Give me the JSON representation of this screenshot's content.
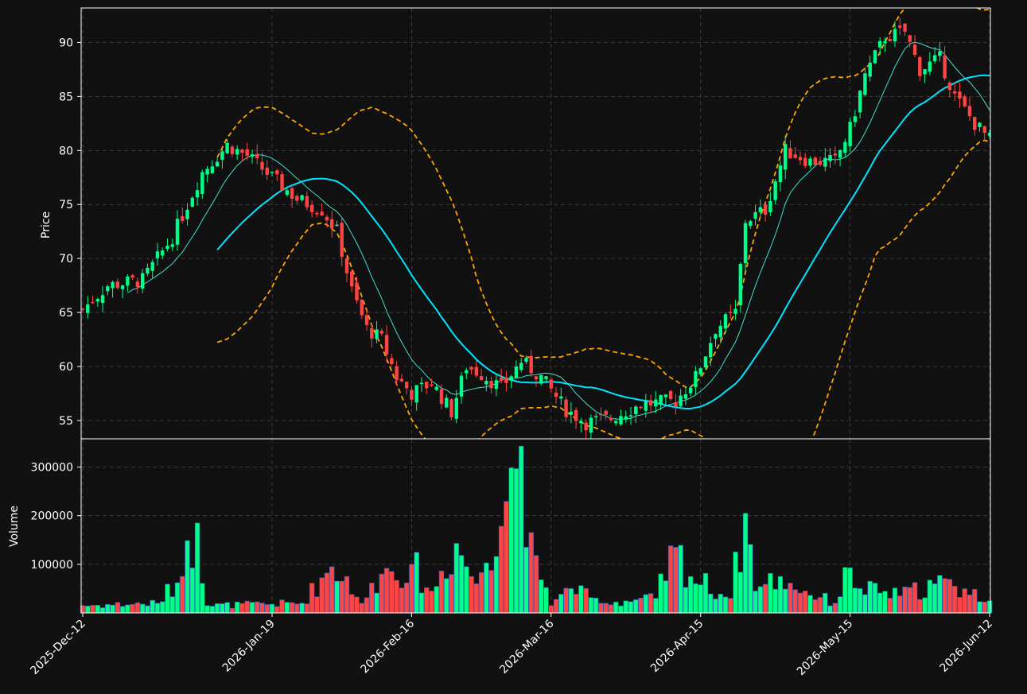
{
  "chart_data": {
    "type": "candlestick",
    "theme": {
      "background": "#111111",
      "up_color": "#00ff88",
      "down_color": "#ff4444",
      "ma_fast_color": "#40e0d0",
      "ma_slow_color": "#00e5ff",
      "band_color": "#ffa500",
      "grid": true
    },
    "price_panel": {
      "ylabel": "Price",
      "ylim": [
        53.3,
        93.2
      ],
      "yticks": [
        55,
        60,
        65,
        70,
        75,
        80,
        85,
        90
      ]
    },
    "volume_panel": {
      "ylabel": "Volume",
      "ylim": [
        0,
        345000
      ],
      "yticks": [
        100000,
        200000,
        300000
      ]
    },
    "x_axis": {
      "start_date": "2025-12-12",
      "tick_dates": [
        "2025-12-12",
        "2026-01-19",
        "2026-02-16",
        "2026-03-16",
        "2026-04-15",
        "2026-05-15",
        "2026-06-12"
      ],
      "tick_labels": [
        "2025-Dec-12",
        "2026-Jan-19",
        "2026-Feb-16",
        "2026-Mar-16",
        "2026-Apr-15",
        "2026-May-15",
        "2026-Jun-12"
      ]
    },
    "close_anchors": [
      {
        "d": "2025-12-12",
        "c": 65.3
      },
      {
        "d": "2025-12-17",
        "c": 67.5
      },
      {
        "d": "2025-12-24",
        "c": 68.0
      },
      {
        "d": "2025-12-30",
        "c": 72.0
      },
      {
        "d": "2026-01-05",
        "c": 78.0
      },
      {
        "d": "2026-01-10",
        "c": 80.5
      },
      {
        "d": "2026-01-14",
        "c": 79.5
      },
      {
        "d": "2026-01-19",
        "c": 77.5
      },
      {
        "d": "2026-01-24",
        "c": 75.5
      },
      {
        "d": "2026-01-29",
        "c": 74.5
      },
      {
        "d": "2026-02-01",
        "c": 72.5
      },
      {
        "d": "2026-02-04",
        "c": 67.0
      },
      {
        "d": "2026-02-07",
        "c": 63.5
      },
      {
        "d": "2026-02-10",
        "c": 62.5
      },
      {
        "d": "2026-02-13",
        "c": 59.0
      },
      {
        "d": "2026-02-16",
        "c": 57.5
      },
      {
        "d": "2026-02-20",
        "c": 58.5
      },
      {
        "d": "2026-02-24",
        "c": 55.8
      },
      {
        "d": "2026-02-27",
        "c": 60.0
      },
      {
        "d": "2026-03-02",
        "c": 59.3
      },
      {
        "d": "2026-03-06",
        "c": 58.0
      },
      {
        "d": "2026-03-10",
        "c": 60.5
      },
      {
        "d": "2026-03-14",
        "c": 59.0
      },
      {
        "d": "2026-03-19",
        "c": 56.0
      },
      {
        "d": "2026-03-23",
        "c": 54.8
      },
      {
        "d": "2026-03-28",
        "c": 55.2
      },
      {
        "d": "2026-04-03",
        "c": 56.5
      },
      {
        "d": "2026-04-10",
        "c": 56.8
      },
      {
        "d": "2026-04-14",
        "c": 59.0
      },
      {
        "d": "2026-04-18",
        "c": 63.5
      },
      {
        "d": "2026-04-22",
        "c": 65.0
      },
      {
        "d": "2026-04-24",
        "c": 73.5
      },
      {
        "d": "2026-04-28",
        "c": 74.5
      },
      {
        "d": "2026-05-02",
        "c": 80.0
      },
      {
        "d": "2026-05-07",
        "c": 79.0
      },
      {
        "d": "2026-05-12",
        "c": 79.0
      },
      {
        "d": "2026-05-15",
        "c": 82.0
      },
      {
        "d": "2026-05-18",
        "c": 87.0
      },
      {
        "d": "2026-05-22",
        "c": 90.5
      },
      {
        "d": "2026-05-26",
        "c": 91.0
      },
      {
        "d": "2026-05-29",
        "c": 87.5
      },
      {
        "d": "2026-06-02",
        "c": 88.5
      },
      {
        "d": "2026-06-05",
        "c": 85.0
      },
      {
        "d": "2026-06-09",
        "c": 82.5
      },
      {
        "d": "2026-06-12",
        "c": 81.0
      }
    ],
    "volume_anchors": [
      {
        "d": "2025-12-12",
        "v": 15000
      },
      {
        "d": "2025-12-27",
        "v": 20000
      },
      {
        "d": "2026-01-01",
        "v": 75000
      },
      {
        "d": "2026-01-04",
        "v": 185000
      },
      {
        "d": "2026-01-06",
        "v": 15000
      },
      {
        "d": "2026-01-25",
        "v": 20000
      },
      {
        "d": "2026-01-31",
        "v": 95000
      },
      {
        "d": "2026-02-03",
        "v": 75000
      },
      {
        "d": "2026-02-06",
        "v": 20000
      },
      {
        "d": "2026-02-10",
        "v": 80000
      },
      {
        "d": "2026-02-16",
        "v": 100000
      },
      {
        "d": "2026-02-20",
        "v": 45000
      },
      {
        "d": "2026-02-25",
        "v": 143000
      },
      {
        "d": "2026-03-01",
        "v": 60000
      },
      {
        "d": "2026-03-10",
        "v": 343000
      },
      {
        "d": "2026-03-11",
        "v": 135000
      },
      {
        "d": "2026-03-13",
        "v": 118000
      },
      {
        "d": "2026-03-16",
        "v": 15000
      },
      {
        "d": "2026-03-20",
        "v": 50000
      },
      {
        "d": "2026-03-26",
        "v": 20000
      },
      {
        "d": "2026-04-06",
        "v": 30000
      },
      {
        "d": "2026-04-10",
        "v": 135000
      },
      {
        "d": "2026-04-13",
        "v": 75000
      },
      {
        "d": "2026-04-21",
        "v": 30000
      },
      {
        "d": "2026-04-24",
        "v": 205000
      },
      {
        "d": "2026-04-26",
        "v": 45000
      },
      {
        "d": "2026-05-01",
        "v": 75000
      },
      {
        "d": "2026-05-06",
        "v": 45000
      },
      {
        "d": "2026-05-12",
        "v": 20000
      },
      {
        "d": "2026-05-15",
        "v": 93000
      },
      {
        "d": "2026-05-17",
        "v": 50000
      },
      {
        "d": "2026-05-25",
        "v": 35000
      },
      {
        "d": "2026-06-01",
        "v": 60000
      },
      {
        "d": "2026-06-05",
        "v": 55000
      },
      {
        "d": "2026-06-12",
        "v": 25000
      }
    ]
  }
}
